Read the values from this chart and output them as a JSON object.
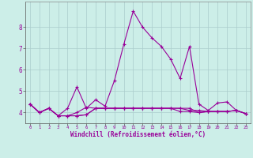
{
  "xlabel": "Windchill (Refroidissement éolien,°C)",
  "xlim": [
    -0.5,
    23.5
  ],
  "ylim": [
    3.5,
    9.2
  ],
  "xticks": [
    0,
    1,
    2,
    3,
    4,
    5,
    6,
    7,
    8,
    9,
    10,
    11,
    12,
    13,
    14,
    15,
    16,
    17,
    18,
    19,
    20,
    21,
    22,
    23
  ],
  "yticks": [
    4,
    5,
    6,
    7,
    8
  ],
  "background_color": "#cceee8",
  "grid_color": "#aacccc",
  "line_color": "#990099",
  "lines": [
    [
      4.4,
      4.0,
      4.2,
      3.85,
      4.2,
      5.2,
      4.2,
      4.6,
      4.3,
      5.5,
      7.2,
      8.75,
      8.0,
      7.5,
      7.1,
      6.5,
      5.6,
      7.1,
      4.4,
      4.1,
      4.45,
      4.5,
      4.1,
      3.95
    ],
    [
      4.4,
      4.0,
      4.2,
      3.85,
      3.85,
      4.0,
      4.25,
      4.2,
      4.2,
      4.2,
      4.2,
      4.2,
      4.2,
      4.2,
      4.2,
      4.2,
      4.2,
      4.1,
      4.1,
      4.05,
      4.05,
      4.05,
      4.1,
      3.95
    ],
    [
      4.4,
      4.0,
      4.2,
      3.85,
      3.85,
      3.85,
      3.9,
      4.2,
      4.2,
      4.2,
      4.2,
      4.2,
      4.2,
      4.2,
      4.2,
      4.2,
      4.2,
      4.2,
      4.0,
      4.05,
      4.05,
      4.05,
      4.1,
      3.95
    ],
    [
      4.4,
      4.0,
      4.2,
      3.85,
      3.85,
      3.85,
      3.9,
      4.2,
      4.2,
      4.2,
      4.2,
      4.2,
      4.2,
      4.2,
      4.2,
      4.2,
      4.05,
      4.05,
      4.0,
      4.05,
      4.05,
      4.05,
      4.1,
      3.95
    ]
  ]
}
